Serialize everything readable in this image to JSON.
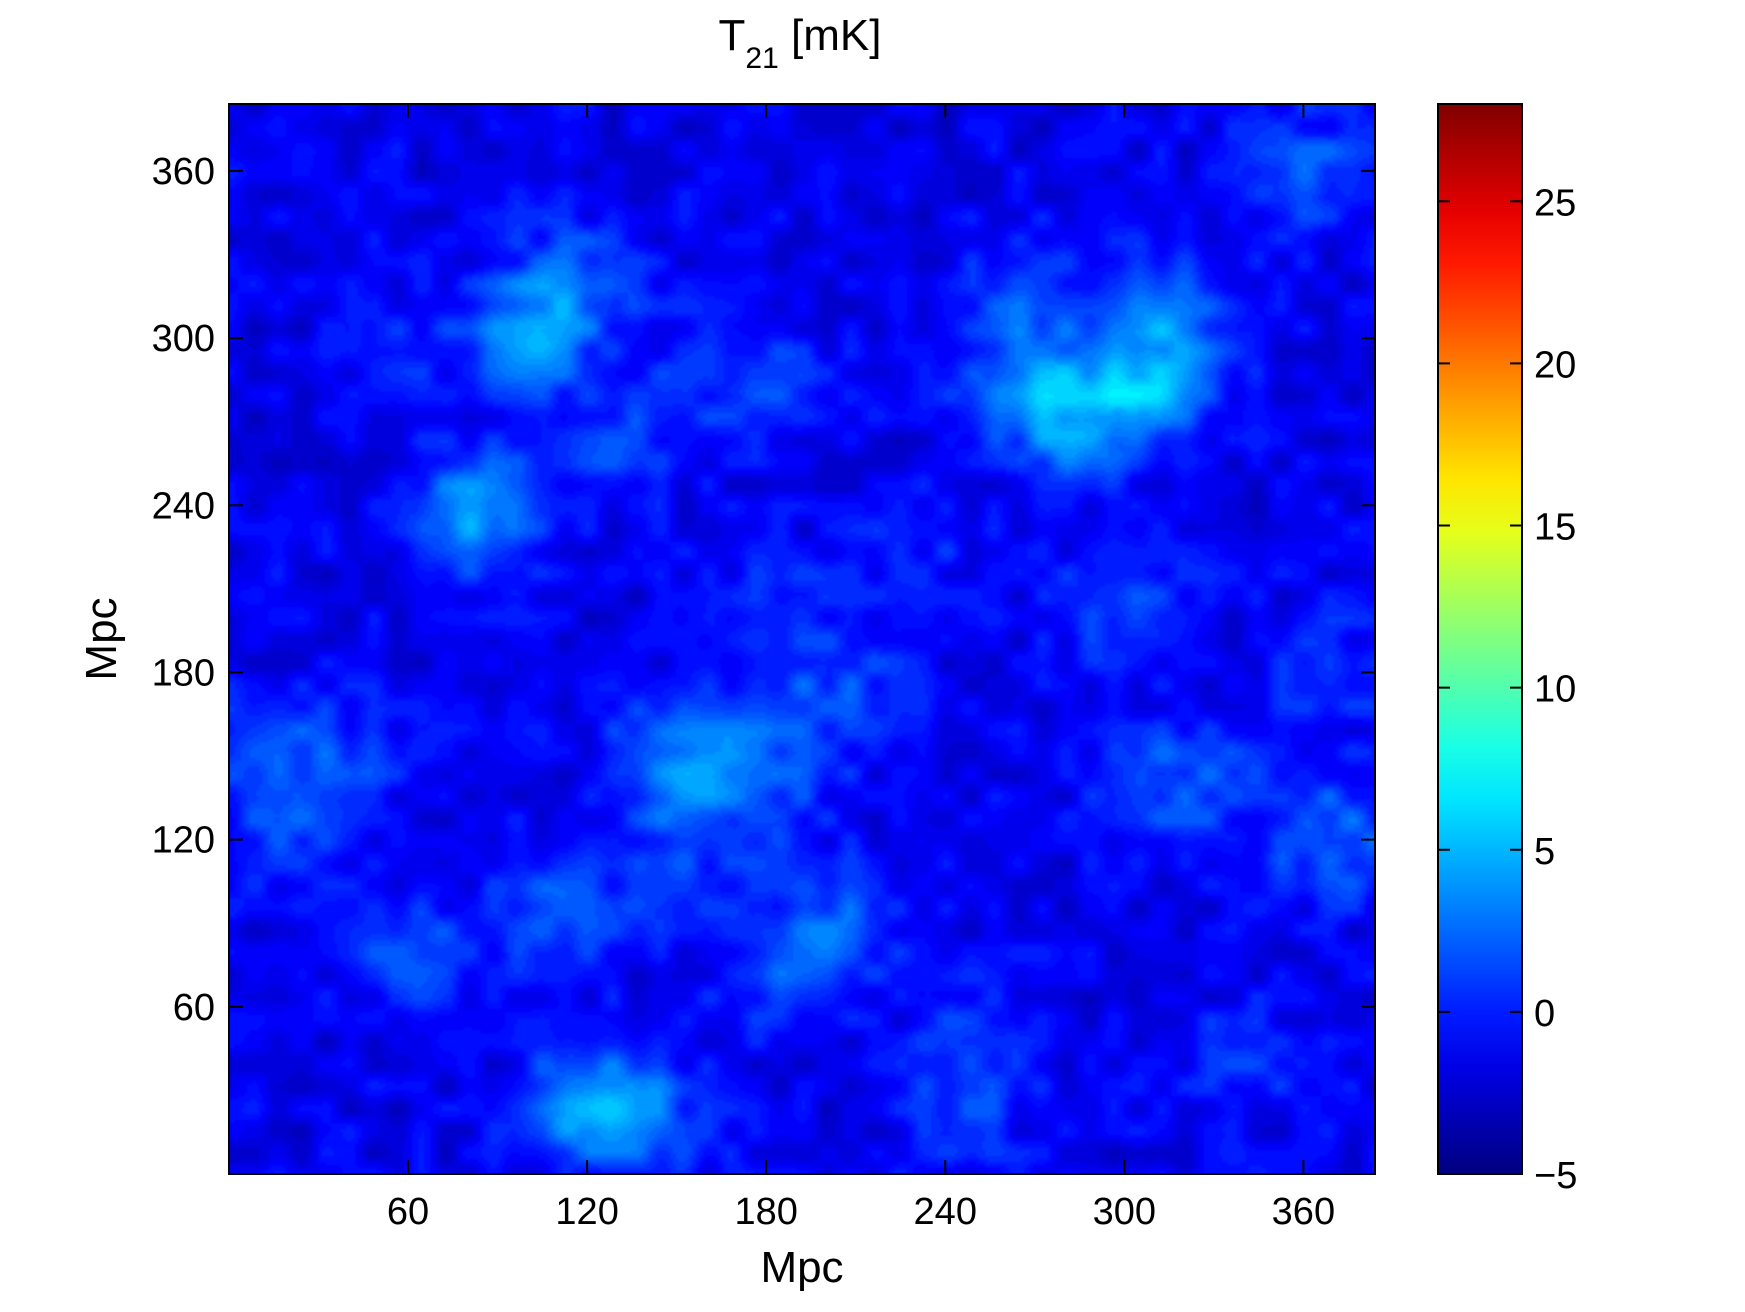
{
  "chart_data": {
    "type": "heatmap",
    "title_main": "T",
    "title_sub": "21",
    "title_unit": " [mK]",
    "xlabel": "Mpc",
    "ylabel": "Mpc",
    "xlim": [
      0,
      384
    ],
    "ylim": [
      0,
      384
    ],
    "xticks": [
      60,
      120,
      180,
      240,
      300,
      360
    ],
    "yticks": [
      60,
      120,
      180,
      240,
      300,
      360
    ],
    "colorbar": {
      "colormap": "jet",
      "range": [
        -5,
        28
      ],
      "ticks": [
        -5,
        0,
        5,
        10,
        15,
        20,
        25
      ]
    },
    "grid": false,
    "background_level": -1.5,
    "features": [
      {
        "x": 82,
        "y": 236,
        "peak": 5.5
      },
      {
        "x": 100,
        "y": 300,
        "peak": 4.5
      },
      {
        "x": 115,
        "y": 320,
        "peak": 3.5
      },
      {
        "x": 125,
        "y": 262,
        "peak": 2.5
      },
      {
        "x": 150,
        "y": 148,
        "peak": 5.0
      },
      {
        "x": 177,
        "y": 140,
        "peak": 3.0
      },
      {
        "x": 180,
        "y": 200,
        "peak": 2.5
      },
      {
        "x": 195,
        "y": 165,
        "peak": 2.0
      },
      {
        "x": 200,
        "y": 90,
        "peak": 3.5
      },
      {
        "x": 150,
        "y": 110,
        "peak": 2.0
      },
      {
        "x": 110,
        "y": 95,
        "peak": 3.5
      },
      {
        "x": 60,
        "y": 80,
        "peak": 3.0
      },
      {
        "x": 40,
        "y": 150,
        "peak": 2.0
      },
      {
        "x": 120,
        "y": 25,
        "peak": 5.5
      },
      {
        "x": 140,
        "y": 20,
        "peak": 3.0
      },
      {
        "x": 180,
        "y": 70,
        "peak": 2.0
      },
      {
        "x": 250,
        "y": 50,
        "peak": 2.5
      },
      {
        "x": 285,
        "y": 270,
        "peak": 5.0
      },
      {
        "x": 265,
        "y": 285,
        "peak": 4.0
      },
      {
        "x": 310,
        "y": 285,
        "peak": 5.5
      },
      {
        "x": 315,
        "y": 310,
        "peak": 3.0
      },
      {
        "x": 270,
        "y": 320,
        "peak": 2.5
      },
      {
        "x": 300,
        "y": 205,
        "peak": 3.0
      },
      {
        "x": 310,
        "y": 140,
        "peak": 2.5
      },
      {
        "x": 330,
        "y": 140,
        "peak": 2.0
      },
      {
        "x": 370,
        "y": 120,
        "peak": 4.0
      },
      {
        "x": 370,
        "y": 180,
        "peak": 2.0
      },
      {
        "x": 360,
        "y": 360,
        "peak": 3.5
      },
      {
        "x": 245,
        "y": 20,
        "peak": 2.0
      },
      {
        "x": 340,
        "y": 40,
        "peak": 2.0
      },
      {
        "x": 10,
        "y": 150,
        "peak": 2.5
      },
      {
        "x": 20,
        "y": 120,
        "peak": 2.0
      },
      {
        "x": 60,
        "y": 300,
        "peak": 1.5
      },
      {
        "x": 160,
        "y": 290,
        "peak": 2.0
      },
      {
        "x": 185,
        "y": 280,
        "peak": 2.0
      },
      {
        "x": 230,
        "y": 220,
        "peak": 1.5
      },
      {
        "x": 210,
        "y": 180,
        "peak": 1.5
      }
    ]
  }
}
